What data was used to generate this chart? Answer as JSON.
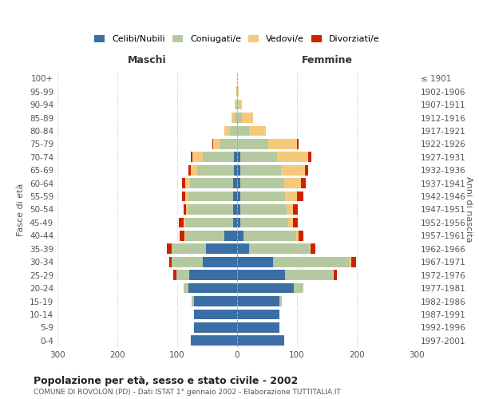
{
  "age_groups": [
    "0-4",
    "5-9",
    "10-14",
    "15-19",
    "20-24",
    "25-29",
    "30-34",
    "35-39",
    "40-44",
    "45-49",
    "50-54",
    "55-59",
    "60-64",
    "65-69",
    "70-74",
    "75-79",
    "80-84",
    "85-89",
    "90-94",
    "95-99",
    "100+"
  ],
  "birth_years": [
    "1997-2001",
    "1992-1996",
    "1987-1991",
    "1982-1986",
    "1977-1981",
    "1972-1976",
    "1967-1971",
    "1962-1966",
    "1957-1961",
    "1952-1956",
    "1947-1951",
    "1942-1946",
    "1937-1941",
    "1932-1936",
    "1927-1931",
    "1922-1926",
    "1917-1921",
    "1912-1916",
    "1907-1911",
    "1902-1906",
    "≤ 1901"
  ],
  "male_celibi": [
    78,
    72,
    72,
    72,
    82,
    80,
    58,
    52,
    22,
    7,
    7,
    7,
    7,
    5,
    5,
    0,
    0,
    0,
    0,
    0,
    0
  ],
  "male_coniugati": [
    0,
    0,
    0,
    4,
    8,
    22,
    52,
    58,
    65,
    80,
    75,
    75,
    72,
    62,
    52,
    28,
    12,
    4,
    2,
    1,
    0
  ],
  "male_vedovi": [
    0,
    0,
    0,
    0,
    0,
    0,
    0,
    0,
    1,
    2,
    3,
    5,
    8,
    10,
    18,
    12,
    10,
    5,
    2,
    0,
    0
  ],
  "male_divorziati": [
    0,
    0,
    0,
    0,
    0,
    5,
    3,
    8,
    8,
    8,
    4,
    5,
    5,
    4,
    2,
    2,
    0,
    0,
    0,
    0,
    0
  ],
  "fem_nubili": [
    78,
    70,
    70,
    70,
    95,
    80,
    60,
    20,
    10,
    5,
    5,
    5,
    5,
    5,
    5,
    0,
    0,
    0,
    0,
    0,
    0
  ],
  "fem_coniugate": [
    0,
    0,
    0,
    5,
    15,
    80,
    128,
    100,
    88,
    80,
    78,
    75,
    73,
    68,
    62,
    52,
    20,
    8,
    3,
    1,
    0
  ],
  "fem_vedove": [
    0,
    0,
    0,
    0,
    0,
    1,
    2,
    3,
    5,
    8,
    10,
    20,
    28,
    40,
    52,
    48,
    28,
    18,
    5,
    1,
    0
  ],
  "fem_divorziate": [
    0,
    0,
    0,
    0,
    0,
    5,
    8,
    8,
    8,
    8,
    8,
    10,
    8,
    5,
    5,
    2,
    0,
    0,
    0,
    0,
    0
  ],
  "col_celibi": "#3a6ea5",
  "col_coniugati": "#b5c9a0",
  "col_vedovi": "#f5c97a",
  "col_divorziati": "#cc2200",
  "title": "Popolazione per età, sesso e stato civile - 2002",
  "subtitle": "COMUNE DI ROVOLON (PD) - Dati ISTAT 1° gennaio 2002 - Elaborazione TUTTITALIA.IT",
  "legend_labels": [
    "Celibi/Nubili",
    "Coniugati/e",
    "Vedovi/e",
    "Divorziati/e"
  ],
  "bg_color": "#ffffff",
  "grid_color": "#cccccc",
  "xlim": 300
}
